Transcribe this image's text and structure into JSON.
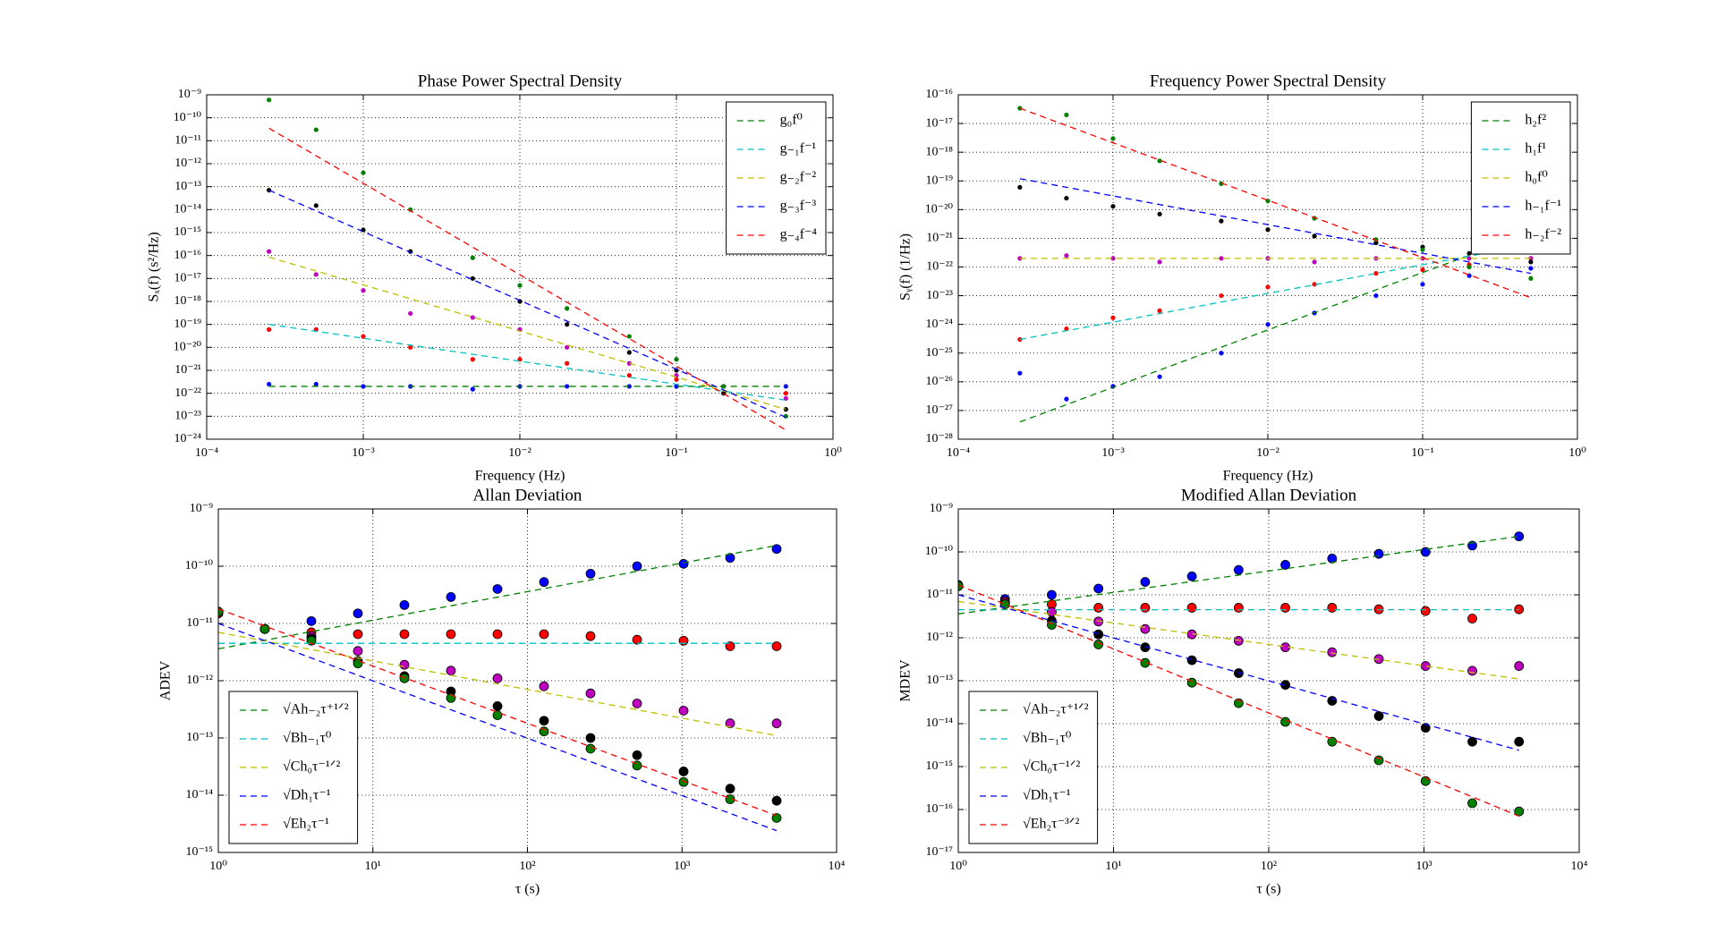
{
  "chart_data": [
    {
      "type": "scatter",
      "title": "Phase Power Spectral Density",
      "x_label": "Frequency (Hz)",
      "y_label": "Sₓ(f) (s²/Hz)",
      "log_x": true,
      "log_y": true,
      "grid": true,
      "legend": "upper right",
      "marker": ".",
      "xlim": [
        0.0001,
        1
      ],
      "ylim": [
        1e-24,
        1e-09
      ],
      "xticks": [
        {
          "value": 0.0001,
          "label": "10⁻⁴"
        },
        {
          "value": 0.001,
          "label": "10⁻³"
        },
        {
          "value": 0.01,
          "label": "10⁻²"
        },
        {
          "value": 0.1,
          "label": "10⁻¹"
        },
        {
          "value": 1,
          "label": "10⁰"
        }
      ],
      "yticks": [
        {
          "value": 1e-24,
          "label": "10⁻²⁴"
        },
        {
          "value": 1e-23,
          "label": "10⁻²³"
        },
        {
          "value": 1e-22,
          "label": "10⁻²²"
        },
        {
          "value": 1e-21,
          "label": "10⁻²¹"
        },
        {
          "value": 1e-20,
          "label": "10⁻²⁰"
        },
        {
          "value": 1e-19,
          "label": "10⁻¹⁹"
        },
        {
          "value": 1e-18,
          "label": "10⁻¹⁸"
        },
        {
          "value": 1e-17,
          "label": "10⁻¹⁷"
        },
        {
          "value": 1e-16,
          "label": "10⁻¹⁶"
        },
        {
          "value": 1e-15,
          "label": "10⁻¹⁵"
        },
        {
          "value": 1e-14,
          "label": "10⁻¹⁴"
        },
        {
          "value": 1e-13,
          "label": "10⁻¹³"
        },
        {
          "value": 1e-12,
          "label": "10⁻¹²"
        },
        {
          "value": 1e-11,
          "label": "10⁻¹¹"
        },
        {
          "value": 1e-10,
          "label": "10⁻¹⁰"
        },
        {
          "value": 1e-09,
          "label": "10⁻⁹"
        }
      ],
      "x": [
        0.00025,
        0.0005,
        0.001,
        0.002,
        0.005,
        0.01,
        0.02,
        0.05,
        0.1,
        0.2,
        0.5
      ],
      "series": [
        {
          "color": "#0000ff",
          "values": [
            2.5e-22,
            2.5e-22,
            2e-22,
            2e-22,
            1.5e-22,
            2e-22,
            2e-22,
            2e-22,
            2e-22,
            2e-22,
            2e-22
          ]
        },
        {
          "color": "#ff0000",
          "values": [
            6e-20,
            6e-20,
            3e-20,
            1e-20,
            3e-21,
            3e-21,
            2e-21,
            6e-22,
            4e-22,
            2e-22,
            1e-22
          ]
        },
        {
          "color": "#bf00bf",
          "values": [
            1.5e-16,
            1.5e-17,
            3e-18,
            3e-19,
            2e-19,
            6e-20,
            1e-20,
            2e-21,
            6e-22,
            2e-22,
            6e-23
          ]
        },
        {
          "color": "#000000",
          "values": [
            7e-14,
            1.5e-14,
            1.3e-15,
            1.5e-16,
            1e-17,
            1e-18,
            1e-19,
            6e-21,
            1e-21,
            1e-22,
            2e-23
          ]
        },
        {
          "color": "#008000",
          "values": [
            6e-10,
            3e-11,
            4e-13,
            1e-14,
            8e-17,
            5e-18,
            5e-19,
            3e-20,
            3e-21,
            2e-22,
            1e-23
          ]
        }
      ],
      "fits": [
        {
          "name": "g₀f⁰",
          "color": "#008000",
          "x": [
            0.00025,
            0.5
          ],
          "values": [
            2e-22,
            2e-22
          ]
        },
        {
          "name": "g₋₁f⁻¹",
          "color": "#00bfbf",
          "x": [
            0.00025,
            0.5
          ],
          "values": [
            1e-19,
            5e-23
          ]
        },
        {
          "name": "g₋₂f⁻²",
          "color": "#bfbf00",
          "x": [
            0.00025,
            0.5
          ],
          "values": [
            8.5e-17,
            2e-23
          ]
        },
        {
          "name": "g₋₃f⁻³",
          "color": "#0000ff",
          "x": [
            0.00025,
            0.5
          ],
          "values": [
            7e-14,
            9e-24
          ]
        },
        {
          "name": "g₋₄f⁻⁴",
          "color": "#ff0000",
          "x": [
            0.00025,
            0.5
          ],
          "values": [
            3.5e-11,
            2.5e-24
          ]
        }
      ]
    },
    {
      "type": "scatter",
      "title": "Frequency Power Spectral Density",
      "x_label": "Frequency (Hz)",
      "y_label": "Sᵧ(f) (1/Hz)",
      "log_x": true,
      "log_y": true,
      "grid": true,
      "legend": "upper right",
      "marker": ".",
      "xlim": [
        0.0001,
        1
      ],
      "ylim": [
        1e-28,
        1e-16
      ],
      "xticks": [
        {
          "value": 0.0001,
          "label": "10⁻⁴"
        },
        {
          "value": 0.001,
          "label": "10⁻³"
        },
        {
          "value": 0.01,
          "label": "10⁻²"
        },
        {
          "value": 0.1,
          "label": "10⁻¹"
        },
        {
          "value": 1,
          "label": "10⁰"
        }
      ],
      "yticks": [
        {
          "value": 1e-28,
          "label": "10⁻²⁸"
        },
        {
          "value": 1e-27,
          "label": "10⁻²⁷"
        },
        {
          "value": 1e-26,
          "label": "10⁻²⁶"
        },
        {
          "value": 1e-25,
          "label": "10⁻²⁵"
        },
        {
          "value": 1e-24,
          "label": "10⁻²⁴"
        },
        {
          "value": 1e-23,
          "label": "10⁻²³"
        },
        {
          "value": 1e-22,
          "label": "10⁻²²"
        },
        {
          "value": 1e-21,
          "label": "10⁻²¹"
        },
        {
          "value": 1e-20,
          "label": "10⁻²⁰"
        },
        {
          "value": 1e-19,
          "label": "10⁻¹⁹"
        },
        {
          "value": 1e-18,
          "label": "10⁻¹⁸"
        },
        {
          "value": 1e-17,
          "label": "10⁻¹⁷"
        },
        {
          "value": 1e-16,
          "label": "10⁻¹⁶"
        }
      ],
      "x": [
        0.00025,
        0.0005,
        0.001,
        0.002,
        0.005,
        0.01,
        0.02,
        0.05,
        0.1,
        0.2,
        0.5
      ],
      "series": [
        {
          "color": "#0000ff",
          "values": [
            2e-26,
            2.5e-27,
            7e-27,
            1.5e-26,
            1e-25,
            1e-24,
            2.5e-24,
            1e-23,
            2.5e-23,
            5e-23,
            9e-23
          ]
        },
        {
          "color": "#ff0000",
          "values": [
            3e-25,
            7e-25,
            1.7e-24,
            3e-24,
            1e-23,
            2e-23,
            2.5e-23,
            6e-23,
            8e-23,
            1.2e-22,
            2e-22
          ]
        },
        {
          "color": "#bf00bf",
          "values": [
            2e-22,
            2.5e-22,
            2e-22,
            1.5e-22,
            2e-22,
            2e-22,
            1.5e-22,
            2e-22,
            2e-22,
            2e-22,
            2e-22
          ]
        },
        {
          "color": "#000000",
          "values": [
            6e-20,
            2.5e-20,
            1.3e-20,
            7e-21,
            4e-21,
            2e-21,
            1.2e-21,
            7e-22,
            5e-22,
            3e-22,
            1.5e-22
          ]
        },
        {
          "color": "#008000",
          "values": [
            3.4e-17,
            2e-17,
            3e-18,
            5e-19,
            8e-20,
            2e-20,
            5e-21,
            9e-22,
            4e-22,
            1e-22,
            4e-23
          ]
        }
      ],
      "fits": [
        {
          "name": "h₂f²",
          "color": "#008000",
          "x": [
            0.00025,
            0.5
          ],
          "values": [
            4e-28,
            1.6e-21
          ]
        },
        {
          "name": "h₁f¹",
          "color": "#00bfbf",
          "x": [
            0.00025,
            0.5
          ],
          "values": [
            3e-25,
            6e-22
          ]
        },
        {
          "name": "h₀f⁰",
          "color": "#bfbf00",
          "x": [
            0.00025,
            0.5
          ],
          "values": [
            2e-22,
            2e-22
          ]
        },
        {
          "name": "h₋₁f⁻¹",
          "color": "#0000ff",
          "x": [
            0.00025,
            0.5
          ],
          "values": [
            1.2e-19,
            6e-23
          ]
        },
        {
          "name": "h₋₂f⁻²",
          "color": "#ff0000",
          "x": [
            0.00025,
            0.5
          ],
          "values": [
            3.4e-17,
            8.5e-24
          ]
        }
      ]
    },
    {
      "type": "scatter",
      "title": "Allan Deviation",
      "x_label": "τ (s)",
      "y_label": "ADEV",
      "log_x": true,
      "log_y": true,
      "grid": true,
      "legend": "lower left",
      "marker": "o",
      "xlim": [
        1,
        10000
      ],
      "ylim": [
        1e-15,
        1e-09
      ],
      "xticks": [
        {
          "value": 1,
          "label": "10⁰"
        },
        {
          "value": 10,
          "label": "10¹"
        },
        {
          "value": 100,
          "label": "10²"
        },
        {
          "value": 1000,
          "label": "10³"
        },
        {
          "value": 10000,
          "label": "10⁴"
        }
      ],
      "yticks": [
        {
          "value": 1e-15,
          "label": "10⁻¹⁵"
        },
        {
          "value": 1e-14,
          "label": "10⁻¹⁴"
        },
        {
          "value": 1e-13,
          "label": "10⁻¹³"
        },
        {
          "value": 1e-12,
          "label": "10⁻¹²"
        },
        {
          "value": 1e-11,
          "label": "10⁻¹¹"
        },
        {
          "value": 1e-10,
          "label": "10⁻¹⁰"
        },
        {
          "value": 1e-09,
          "label": "10⁻⁹"
        }
      ],
      "x": [
        1,
        2,
        4,
        8,
        16,
        32,
        64,
        128,
        256,
        512,
        1024,
        2048,
        4096
      ],
      "series": [
        {
          "color": "#0000ff",
          "values": [
            1.5e-11,
            8e-12,
            1.1e-11,
            1.5e-11,
            2.1e-11,
            2.9e-11,
            4e-11,
            5.3e-11,
            7.4e-11,
            1e-10,
            1.1e-10,
            1.4e-10,
            2e-10
          ]
        },
        {
          "color": "#ff0000",
          "values": [
            1.5e-11,
            8e-12,
            7e-12,
            6.5e-12,
            6.5e-12,
            6.5e-12,
            6.5e-12,
            6.5e-12,
            6e-12,
            5.2e-12,
            5e-12,
            4e-12,
            4e-12
          ]
        },
        {
          "color": "#bf00bf",
          "values": [
            1.6e-11,
            8e-12,
            6e-12,
            3.3e-12,
            1.9e-12,
            1.5e-12,
            1.1e-12,
            8e-13,
            6e-13,
            4e-13,
            3e-13,
            1.8e-13,
            1.8e-13
          ]
        },
        {
          "color": "#000000",
          "values": [
            1.6e-11,
            8e-12,
            5.5e-12,
            2.2e-12,
            1.2e-12,
            6.5e-13,
            3.6e-13,
            2e-13,
            1e-13,
            5e-14,
            2.6e-14,
            1.3e-14,
            8e-15
          ]
        },
        {
          "color": "#008000",
          "values": [
            1.6e-11,
            8e-12,
            5e-12,
            2e-12,
            1.1e-12,
            5e-13,
            2.5e-13,
            1.3e-13,
            6.5e-14,
            3.3e-14,
            1.7e-14,
            8.5e-15,
            4e-15
          ]
        }
      ],
      "fits": [
        {
          "name": "√Ah₋₂τ⁺¹ᐟ²",
          "color": "#008000",
          "x": [
            1,
            4096
          ],
          "values": [
            3.6e-12,
            2.3e-10
          ]
        },
        {
          "name": "√Bh₋₁τ⁰",
          "color": "#00bfbf",
          "x": [
            1,
            4096
          ],
          "values": [
            4.5e-12,
            4.5e-12
          ]
        },
        {
          "name": "√Ch₀τ⁻¹ᐟ²",
          "color": "#bfbf00",
          "x": [
            1,
            4096
          ],
          "values": [
            7e-12,
            1.1e-13
          ]
        },
        {
          "name": "√Dh₁τ⁻¹",
          "color": "#0000ff",
          "x": [
            1,
            4096
          ],
          "values": [
            1e-11,
            2.4e-15
          ]
        },
        {
          "name": "√Eh₂τ⁻¹",
          "color": "#ff0000",
          "x": [
            1,
            4096
          ],
          "values": [
            1.8e-11,
            4.4e-15
          ]
        }
      ]
    },
    {
      "type": "scatter",
      "title": "Modified Allan Deviation",
      "x_label": "τ (s)",
      "y_label": "MDEV",
      "log_x": true,
      "log_y": true,
      "grid": true,
      "legend": "lower left",
      "marker": "o",
      "xlim": [
        1,
        10000
      ],
      "ylim": [
        1e-17,
        1e-09
      ],
      "xticks": [
        {
          "value": 1,
          "label": "10⁰"
        },
        {
          "value": 10,
          "label": "10¹"
        },
        {
          "value": 100,
          "label": "10²"
        },
        {
          "value": 1000,
          "label": "10³"
        },
        {
          "value": 10000,
          "label": "10⁴"
        }
      ],
      "yticks": [
        {
          "value": 1e-17,
          "label": "10⁻¹⁷"
        },
        {
          "value": 1e-16,
          "label": "10⁻¹⁶"
        },
        {
          "value": 1e-15,
          "label": "10⁻¹⁵"
        },
        {
          "value": 1e-14,
          "label": "10⁻¹⁴"
        },
        {
          "value": 1e-13,
          "label": "10⁻¹³"
        },
        {
          "value": 1e-12,
          "label": "10⁻¹²"
        },
        {
          "value": 1e-11,
          "label": "10⁻¹¹"
        },
        {
          "value": 1e-10,
          "label": "10⁻¹⁰"
        },
        {
          "value": 1e-09,
          "label": "10⁻⁹"
        }
      ],
      "x": [
        1,
        2,
        4,
        8,
        16,
        32,
        64,
        128,
        256,
        512,
        1024,
        2048,
        4096
      ],
      "series": [
        {
          "color": "#0000ff",
          "values": [
            1.7e-11,
            8e-12,
            1e-11,
            1.4e-11,
            2e-11,
            2.7e-11,
            3.8e-11,
            5e-11,
            7e-11,
            9e-11,
            1e-10,
            1.4e-10,
            2.3e-10
          ]
        },
        {
          "color": "#ff0000",
          "values": [
            1.6e-11,
            7e-12,
            6e-12,
            5e-12,
            5e-12,
            5e-12,
            5e-12,
            5e-12,
            5e-12,
            4.6e-12,
            4.2e-12,
            2.8e-12,
            4.6e-12
          ]
        },
        {
          "color": "#bf00bf",
          "values": [
            1.6e-11,
            6.5e-12,
            4e-12,
            2.4e-12,
            1.6e-12,
            1.2e-12,
            8.5e-13,
            6e-13,
            4.6e-13,
            3.2e-13,
            2.2e-13,
            1.7e-13,
            2.2e-13
          ]
        },
        {
          "color": "#000000",
          "values": [
            1.6e-11,
            6e-12,
            2.5e-12,
            1.2e-12,
            6e-13,
            3e-13,
            1.5e-13,
            8e-14,
            3.4e-14,
            1.5e-14,
            8e-15,
            3.8e-15,
            3.8e-15
          ]
        },
        {
          "color": "#008000",
          "values": [
            1.6e-11,
            6e-12,
            2e-12,
            7e-13,
            2.6e-13,
            9e-14,
            3e-14,
            1.1e-14,
            3.8e-15,
            1.4e-15,
            4.6e-16,
            1.4e-16,
            9e-17
          ]
        }
      ],
      "fits": [
        {
          "name": "√Ah₋₂τ⁺¹ᐟ²",
          "color": "#008000",
          "x": [
            1,
            4096
          ],
          "values": [
            3.6e-12,
            2.3e-10
          ]
        },
        {
          "name": "√Bh₋₁τ⁰",
          "color": "#00bfbf",
          "x": [
            1,
            4096
          ],
          "values": [
            4.5e-12,
            4.5e-12
          ]
        },
        {
          "name": "√Ch₀τ⁻¹ᐟ²",
          "color": "#bfbf00",
          "x": [
            1,
            4096
          ],
          "values": [
            7e-12,
            1.1e-13
          ]
        },
        {
          "name": "√Dh₁τ⁻¹",
          "color": "#0000ff",
          "x": [
            1,
            4096
          ],
          "values": [
            1e-11,
            2.4e-15
          ]
        },
        {
          "name": "√Eh₂τ⁻³ᐟ²",
          "color": "#ff0000",
          "x": [
            1,
            4096
          ],
          "values": [
            1.7e-11,
            7e-17
          ]
        }
      ]
    }
  ]
}
